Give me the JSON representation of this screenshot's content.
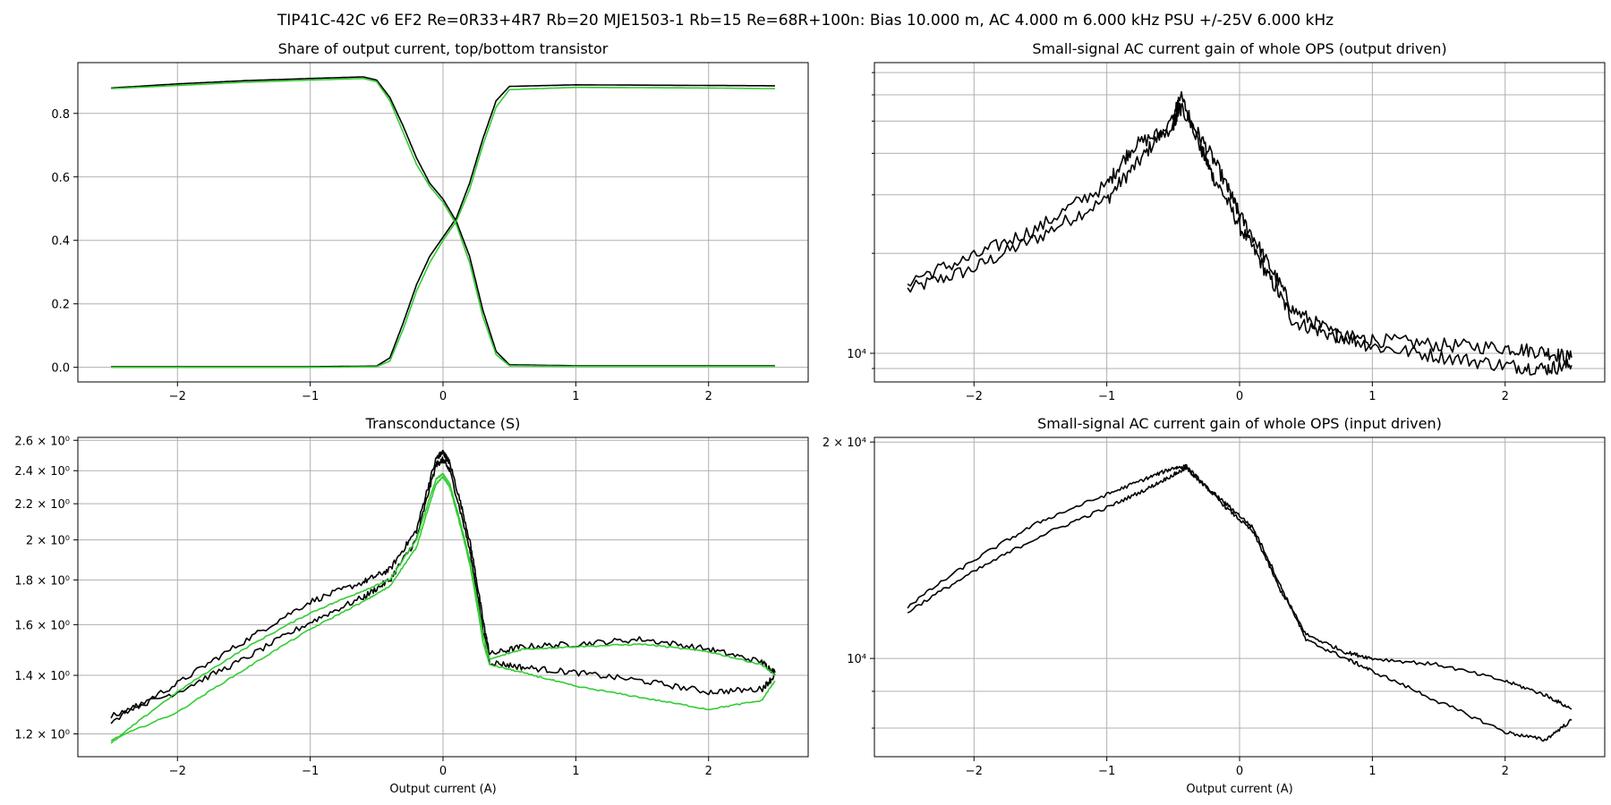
{
  "suptitle": "TIP41C-42C v6 EF2 Re=0R33+4R7 Rb=20 MJE1503-1 Rb=15 Re=68R+100n: Bias 10.000 m, AC 4.000 m 6.000 kHz PSU +/-25V 6.000 kHz",
  "colors": {
    "black": "#000000",
    "green": "#33cc33",
    "grid": "#b0b0b0"
  },
  "chart_data": [
    {
      "type": "line",
      "title": "Share of output current, top/bottom transistor",
      "xlabel": "",
      "ylabel": "",
      "xlim": [
        -2.75,
        2.75
      ],
      "ylim": [
        -0.046,
        0.96
      ],
      "yscale": "linear",
      "grid": true,
      "xticks": [
        -2,
        -1,
        0,
        1,
        2
      ],
      "xtick_labels": [
        "−2",
        "−1",
        "0",
        "1",
        "2"
      ],
      "yticks": [
        0.0,
        0.2,
        0.4,
        0.6,
        0.8
      ],
      "ytick_labels": [
        "0.0",
        "0.2",
        "0.4",
        "0.6",
        "0.8"
      ],
      "series": [
        {
          "color": "#000000",
          "points": [
            [
              -2.5,
              0.88
            ],
            [
              -2.0,
              0.893
            ],
            [
              -1.5,
              0.903
            ],
            [
              -1.0,
              0.91
            ],
            [
              -0.6,
              0.915
            ],
            [
              -0.5,
              0.905
            ],
            [
              -0.4,
              0.85
            ],
            [
              -0.3,
              0.76
            ],
            [
              -0.2,
              0.66
            ],
            [
              -0.1,
              0.58
            ],
            [
              0.0,
              0.53
            ],
            [
              0.1,
              0.46
            ],
            [
              0.2,
              0.35
            ],
            [
              0.3,
              0.18
            ],
            [
              0.4,
              0.05
            ],
            [
              0.5,
              0.008
            ],
            [
              1.0,
              0.005
            ],
            [
              2.0,
              0.005
            ],
            [
              2.5,
              0.005
            ]
          ]
        },
        {
          "color": "#000000",
          "points": [
            [
              -2.5,
              0.002
            ],
            [
              -1.0,
              0.002
            ],
            [
              -0.5,
              0.004
            ],
            [
              -0.4,
              0.03
            ],
            [
              -0.3,
              0.14
            ],
            [
              -0.2,
              0.26
            ],
            [
              -0.1,
              0.35
            ],
            [
              0.0,
              0.41
            ],
            [
              0.1,
              0.47
            ],
            [
              0.2,
              0.58
            ],
            [
              0.3,
              0.72
            ],
            [
              0.4,
              0.84
            ],
            [
              0.5,
              0.885
            ],
            [
              1.0,
              0.89
            ],
            [
              2.0,
              0.888
            ],
            [
              2.5,
              0.887
            ]
          ]
        },
        {
          "color": "#33cc33",
          "points": [
            [
              -2.5,
              0.878
            ],
            [
              -2.0,
              0.888
            ],
            [
              -1.5,
              0.898
            ],
            [
              -1.0,
              0.905
            ],
            [
              -0.6,
              0.91
            ],
            [
              -0.5,
              0.9
            ],
            [
              -0.4,
              0.84
            ],
            [
              -0.3,
              0.74
            ],
            [
              -0.2,
              0.64
            ],
            [
              -0.1,
              0.57
            ],
            [
              0.0,
              0.52
            ],
            [
              0.1,
              0.45
            ],
            [
              0.2,
              0.33
            ],
            [
              0.3,
              0.16
            ],
            [
              0.4,
              0.04
            ],
            [
              0.5,
              0.005
            ],
            [
              1.0,
              0.003
            ],
            [
              2.0,
              0.003
            ],
            [
              2.5,
              0.003
            ]
          ]
        },
        {
          "color": "#33cc33",
          "points": [
            [
              -2.5,
              0.0
            ],
            [
              -1.0,
              0.0
            ],
            [
              -0.5,
              0.002
            ],
            [
              -0.4,
              0.02
            ],
            [
              -0.3,
              0.12
            ],
            [
              -0.2,
              0.24
            ],
            [
              -0.1,
              0.33
            ],
            [
              0.0,
              0.4
            ],
            [
              0.1,
              0.46
            ],
            [
              0.2,
              0.56
            ],
            [
              0.3,
              0.7
            ],
            [
              0.4,
              0.82
            ],
            [
              0.5,
              0.875
            ],
            [
              1.0,
              0.882
            ],
            [
              2.0,
              0.88
            ],
            [
              2.5,
              0.878
            ]
          ]
        }
      ]
    },
    {
      "type": "line",
      "title": "Small-signal AC current gain of whole OPS (output driven)",
      "xlabel": "",
      "ylabel": "",
      "xlim": [
        -2.75,
        2.75
      ],
      "ylim": [
        8200,
        75000
      ],
      "yscale": "log",
      "grid": true,
      "xticks": [
        -2,
        -1,
        0,
        1,
        2
      ],
      "xtick_labels": [
        "−2",
        "−1",
        "0",
        "1",
        "2"
      ],
      "yticks": [
        10000
      ],
      "ytick_labels": [
        "10⁴"
      ],
      "yminor": [
        9000,
        20000,
        30000,
        40000,
        50000,
        60000,
        70000
      ],
      "series": [
        {
          "color": "#000000",
          "noise": 0.05,
          "points": [
            [
              -2.5,
              15500
            ],
            [
              -2.0,
              18000
            ],
            [
              -1.5,
              22500
            ],
            [
              -1.0,
              29000
            ],
            [
              -0.75,
              38000
            ],
            [
              -0.5,
              50000
            ],
            [
              -0.45,
              60000
            ],
            [
              -0.3,
              42000
            ],
            [
              -0.2,
              34000
            ],
            [
              0.0,
              24000
            ],
            [
              0.2,
              17500
            ],
            [
              0.4,
              12500
            ],
            [
              0.7,
              11300
            ],
            [
              1.0,
              11000
            ],
            [
              1.5,
              10600
            ],
            [
              2.0,
              10400
            ],
            [
              2.3,
              10100
            ],
            [
              2.5,
              9700
            ]
          ]
        },
        {
          "color": "#000000",
          "noise": 0.05,
          "points": [
            [
              -2.5,
              16500
            ],
            [
              -2.0,
              19500
            ],
            [
              -1.5,
              24000
            ],
            [
              -1.0,
              32000
            ],
            [
              -0.8,
              42000
            ],
            [
              -0.5,
              48000
            ],
            [
              -0.45,
              55000
            ],
            [
              -0.3,
              45000
            ],
            [
              -0.1,
              32000
            ],
            [
              0.0,
              26000
            ],
            [
              0.2,
              19000
            ],
            [
              0.4,
              13500
            ],
            [
              0.7,
              11500
            ],
            [
              1.0,
              10500
            ],
            [
              1.5,
              9800
            ],
            [
              2.0,
              9200
            ],
            [
              2.3,
              9000
            ],
            [
              2.5,
              9200
            ]
          ]
        }
      ]
    },
    {
      "type": "line",
      "title": "Transconductance (S)",
      "xlabel": "Output current (A)",
      "ylabel": "",
      "xlim": [
        -2.75,
        2.75
      ],
      "ylim": [
        1.13,
        2.62
      ],
      "yscale": "log",
      "grid": true,
      "xticks": [
        -2,
        -1,
        0,
        1,
        2
      ],
      "xtick_labels": [
        "−2",
        "−1",
        "0",
        "1",
        "2"
      ],
      "yticks": [
        1.2,
        1.4,
        1.6,
        1.8,
        2.0,
        2.2,
        2.4,
        2.6
      ],
      "ytick_labels": [
        "1.2 × 10⁰",
        "1.4 × 10⁰",
        "1.6 × 10⁰",
        "1.8 × 10⁰",
        "2 × 10⁰",
        "2.2 × 10⁰",
        "2.4 × 10⁰",
        "2.6 × 10⁰"
      ],
      "series": [
        {
          "color": "#000000",
          "noise": 0.008,
          "points": [
            [
              -2.5,
              1.24
            ],
            [
              -2.0,
              1.37
            ],
            [
              -1.5,
              1.53
            ],
            [
              -1.0,
              1.7
            ],
            [
              -0.6,
              1.79
            ],
            [
              -0.4,
              1.85
            ],
            [
              -0.2,
              2.05
            ],
            [
              -0.05,
              2.48
            ],
            [
              0.0,
              2.52
            ],
            [
              0.05,
              2.45
            ],
            [
              0.2,
              2.0
            ],
            [
              0.3,
              1.62
            ],
            [
              0.35,
              1.48
            ],
            [
              0.6,
              1.51
            ],
            [
              1.0,
              1.52
            ],
            [
              1.5,
              1.54
            ],
            [
              2.0,
              1.5
            ],
            [
              2.4,
              1.45
            ],
            [
              2.5,
              1.41
            ]
          ]
        },
        {
          "color": "#000000",
          "noise": 0.008,
          "points": [
            [
              -2.5,
              1.26
            ],
            [
              -2.0,
              1.34
            ],
            [
              -1.5,
              1.46
            ],
            [
              -1.0,
              1.61
            ],
            [
              -0.6,
              1.72
            ],
            [
              -0.4,
              1.8
            ],
            [
              -0.2,
              2.0
            ],
            [
              -0.05,
              2.44
            ],
            [
              0.0,
              2.47
            ],
            [
              0.05,
              2.4
            ],
            [
              0.2,
              1.95
            ],
            [
              0.3,
              1.58
            ],
            [
              0.35,
              1.45
            ],
            [
              0.6,
              1.43
            ],
            [
              1.0,
              1.41
            ],
            [
              1.5,
              1.38
            ],
            [
              2.0,
              1.34
            ],
            [
              2.4,
              1.35
            ],
            [
              2.5,
              1.4
            ]
          ]
        },
        {
          "color": "#33cc33",
          "noise": 0.002,
          "points": [
            [
              -2.5,
              1.17
            ],
            [
              -2.0,
              1.34
            ],
            [
              -1.5,
              1.5
            ],
            [
              -1.0,
              1.65
            ],
            [
              -0.6,
              1.75
            ],
            [
              -0.4,
              1.8
            ],
            [
              -0.2,
              2.0
            ],
            [
              -0.05,
              2.35
            ],
            [
              0.0,
              2.38
            ],
            [
              0.05,
              2.32
            ],
            [
              0.2,
              1.9
            ],
            [
              0.3,
              1.56
            ],
            [
              0.35,
              1.46
            ],
            [
              0.6,
              1.5
            ],
            [
              1.0,
              1.51
            ],
            [
              1.5,
              1.52
            ],
            [
              2.0,
              1.49
            ],
            [
              2.4,
              1.44
            ],
            [
              2.5,
              1.4
            ]
          ]
        },
        {
          "color": "#33cc33",
          "noise": 0.002,
          "points": [
            [
              -2.5,
              1.18
            ],
            [
              -2.0,
              1.27
            ],
            [
              -1.5,
              1.42
            ],
            [
              -1.0,
              1.58
            ],
            [
              -0.6,
              1.7
            ],
            [
              -0.4,
              1.77
            ],
            [
              -0.2,
              1.96
            ],
            [
              -0.05,
              2.32
            ],
            [
              0.0,
              2.36
            ],
            [
              0.05,
              2.3
            ],
            [
              0.2,
              1.88
            ],
            [
              0.3,
              1.53
            ],
            [
              0.35,
              1.44
            ],
            [
              0.6,
              1.41
            ],
            [
              1.0,
              1.36
            ],
            [
              1.5,
              1.32
            ],
            [
              2.0,
              1.28
            ],
            [
              2.4,
              1.31
            ],
            [
              2.5,
              1.38
            ]
          ]
        }
      ]
    },
    {
      "type": "line",
      "title": "Small-signal AC current gain of whole OPS (input driven)",
      "xlabel": "Output current (A)",
      "ylabel": "",
      "xlim": [
        -2.75,
        2.75
      ],
      "ylim": [
        7300,
        20300
      ],
      "yscale": "log",
      "grid": true,
      "xticks": [
        -2,
        -1,
        0,
        1,
        2
      ],
      "xtick_labels": [
        "−2",
        "−1",
        "0",
        "1",
        "2"
      ],
      "yticks": [
        10000,
        20000
      ],
      "ytick_labels": [
        "10⁴",
        "2 × 10⁴"
      ],
      "yminor": [
        8000,
        9000
      ],
      "series": [
        {
          "color": "#000000",
          "noise": 0.006,
          "points": [
            [
              -2.5,
              11800
            ],
            [
              -2.0,
              13700
            ],
            [
              -1.5,
              15500
            ],
            [
              -1.0,
              16900
            ],
            [
              -0.7,
              17800
            ],
            [
              -0.5,
              18400
            ],
            [
              -0.4,
              18500
            ],
            [
              -0.25,
              17300
            ],
            [
              -0.1,
              16200
            ],
            [
              0.1,
              15000
            ],
            [
              0.3,
              12500
            ],
            [
              0.5,
              10800
            ],
            [
              0.8,
              10200
            ],
            [
              1.0,
              10000
            ],
            [
              1.5,
              9800
            ],
            [
              2.0,
              9300
            ],
            [
              2.3,
              8900
            ],
            [
              2.5,
              8500
            ]
          ]
        },
        {
          "color": "#000000",
          "noise": 0.006,
          "points": [
            [
              -2.5,
              11600
            ],
            [
              -2.0,
              13200
            ],
            [
              -1.5,
              14800
            ],
            [
              -1.0,
              16200
            ],
            [
              -0.7,
              17200
            ],
            [
              -0.5,
              18000
            ],
            [
              -0.4,
              18400
            ],
            [
              -0.3,
              17600
            ],
            [
              -0.1,
              16400
            ],
            [
              0.1,
              15200
            ],
            [
              0.3,
              12700
            ],
            [
              0.5,
              10600
            ],
            [
              0.8,
              10000
            ],
            [
              1.0,
              9600
            ],
            [
              1.5,
              8700
            ],
            [
              2.0,
              7900
            ],
            [
              2.3,
              7700
            ],
            [
              2.5,
              8200
            ]
          ]
        }
      ]
    }
  ]
}
